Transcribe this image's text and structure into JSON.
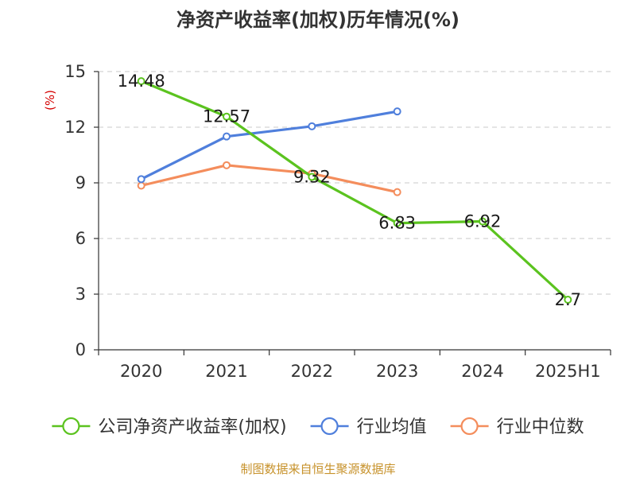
{
  "chart_data": {
    "type": "line",
    "title": "净资产收益率(加权)历年情况(%)",
    "ylabel": "(%)",
    "xlabel": "",
    "categories": [
      "2020",
      "2021",
      "2022",
      "2023",
      "2024",
      "2025H1"
    ],
    "ylim": [
      0,
      15
    ],
    "yticks": [
      0,
      3,
      6,
      9,
      12,
      15
    ],
    "grid": true,
    "legend_position": "bottom",
    "series": [
      {
        "name": "公司净资产收益率(加权)",
        "color": "#5bc31f",
        "values": [
          14.48,
          12.57,
          9.32,
          6.83,
          6.92,
          2.7
        ],
        "labels": [
          "14.48",
          "12.57",
          "9.32",
          "6.83",
          "6.92",
          "2.7"
        ]
      },
      {
        "name": "行业均值",
        "color": "#4f7fdc",
        "values": [
          9.2,
          11.5,
          12.05,
          12.85,
          null,
          null
        ]
      },
      {
        "name": "行业中位数",
        "color": "#f48d5c",
        "values": [
          8.85,
          9.95,
          9.5,
          8.5,
          null,
          null
        ]
      }
    ],
    "source": "制图数据来自恒生聚源数据库"
  }
}
